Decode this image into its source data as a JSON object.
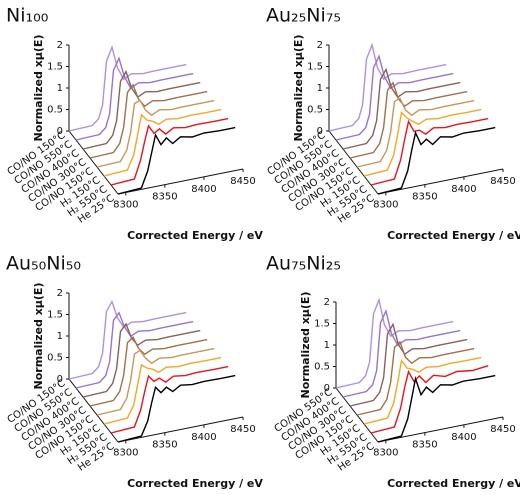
{
  "chart_data": [
    {
      "type": "line",
      "title": "Ni₁₀₀",
      "xlabel": "Corrected Energy / eV",
      "ylabel": "Normalized xμ(E)",
      "x": [
        8290,
        8320,
        8328,
        8333,
        8338,
        8345,
        8352,
        8360,
        8370,
        8385,
        8400,
        8420,
        8440
      ],
      "xlim": [
        8290,
        8450
      ],
      "xticks": [
        8300,
        8350,
        8400,
        8450
      ],
      "ylim": [
        0,
        2
      ],
      "yticks": [
        0,
        0.5,
        1,
        1.5,
        2
      ],
      "series": [
        {
          "name": "He 25°C",
          "color": "#000000",
          "values": [
            0,
            0.03,
            0.4,
            0.8,
            1.2,
            0.95,
            1.08,
            0.92,
            1.04,
            0.98,
            1.02,
            1.0,
            1.0
          ]
        },
        {
          "name": "H₂ 550°C",
          "color": "#e8141c",
          "values": [
            0,
            0.03,
            0.45,
            0.85,
            1.2,
            1.0,
            1.08,
            0.93,
            1.04,
            0.99,
            1.01,
            1.0,
            1.0
          ]
        },
        {
          "name": "H₂ 150°C",
          "color": "#f5a623",
          "values": [
            0,
            0.03,
            0.35,
            0.8,
            1.25,
            1.1,
            1.05,
            0.95,
            1.03,
            0.99,
            1.01,
            1.0,
            1.0
          ]
        },
        {
          "name": "CO/NO 150°C",
          "color": "#c8965a",
          "values": [
            0,
            0.02,
            0.25,
            0.65,
            1.3,
            1.35,
            1.1,
            0.95,
            1.04,
            0.99,
            1.0,
            1.0,
            1.0
          ]
        },
        {
          "name": "CO/NO 300°C",
          "color": "#a0704f",
          "values": [
            0,
            0.02,
            0.2,
            0.55,
            1.35,
            1.5,
            1.15,
            0.95,
            1.04,
            0.99,
            1.0,
            1.0,
            1.0
          ]
        },
        {
          "name": "CO/NO 400°C",
          "color": "#8c5f5a",
          "values": [
            0,
            0.02,
            0.18,
            0.5,
            1.4,
            1.6,
            1.2,
            0.95,
            1.04,
            0.99,
            1.0,
            1.0,
            1.0
          ]
        },
        {
          "name": "CO/NO 550°C",
          "color": "#9a72d0",
          "values": [
            0,
            0.02,
            0.15,
            0.45,
            1.45,
            1.7,
            1.25,
            0.95,
            1.04,
            0.99,
            1.0,
            1.0,
            1.0
          ]
        },
        {
          "name": "CO/NO 150°C",
          "color": "#b090e0",
          "values": [
            0,
            0.02,
            0.15,
            0.45,
            1.45,
            1.75,
            1.25,
            0.95,
            1.04,
            0.99,
            1.0,
            1.0,
            1.0
          ]
        }
      ]
    },
    {
      "type": "line",
      "title": "Au₂₅Ni₇₅",
      "xlabel": "Corrected Energy / eV",
      "ylabel": "Normalized xμ(E)",
      "x": [
        8290,
        8320,
        8328,
        8333,
        8338,
        8345,
        8352,
        8360,
        8370,
        8385,
        8400,
        8420,
        8440
      ],
      "xlim": [
        8290,
        8450
      ],
      "xticks": [
        8300,
        8350,
        8400,
        8450
      ],
      "ylim": [
        0,
        2
      ],
      "yticks": [
        0,
        0.5,
        1,
        1.5,
        2
      ],
      "series": [
        {
          "name": "He 25°C",
          "color": "#000000",
          "values": [
            0,
            0.03,
            0.4,
            0.85,
            1.25,
            0.95,
            1.05,
            0.9,
            1.04,
            0.98,
            1.02,
            1.0,
            1.0
          ]
        },
        {
          "name": "H₂ 550°C",
          "color": "#e8141c",
          "values": [
            0,
            0.03,
            0.45,
            0.9,
            1.3,
            1.05,
            1.05,
            0.93,
            1.04,
            0.99,
            1.01,
            1.0,
            1.0
          ]
        },
        {
          "name": "H₂ 150°C",
          "color": "#f5a623",
          "values": [
            0,
            0.03,
            0.35,
            0.8,
            1.3,
            1.15,
            1.05,
            0.95,
            1.03,
            0.99,
            1.01,
            1.0,
            1.0
          ]
        },
        {
          "name": "CO/NO 150°C",
          "color": "#c8965a",
          "values": [
            0,
            0.02,
            0.25,
            0.65,
            1.35,
            1.4,
            1.1,
            0.95,
            1.04,
            0.99,
            1.0,
            1.0,
            1.0
          ]
        },
        {
          "name": "CO/NO 300°C",
          "color": "#a0704f",
          "values": [
            0,
            0.02,
            0.2,
            0.55,
            1.4,
            1.55,
            1.15,
            0.95,
            1.04,
            0.99,
            1.0,
            1.0,
            1.0
          ]
        },
        {
          "name": "CO/NO 400°C",
          "color": "#8c5f5a",
          "values": [
            0,
            0.02,
            0.18,
            0.5,
            1.45,
            1.65,
            1.2,
            0.95,
            1.04,
            0.99,
            1.0,
            1.0,
            1.0
          ]
        },
        {
          "name": "CO/NO 550°C",
          "color": "#9a72d0",
          "values": [
            0,
            0.02,
            0.15,
            0.45,
            1.5,
            1.75,
            1.25,
            0.95,
            1.04,
            0.99,
            1.0,
            1.0,
            1.0
          ]
        },
        {
          "name": "CO/NO 150°C",
          "color": "#b090e0",
          "values": [
            0,
            0.02,
            0.15,
            0.45,
            1.5,
            1.8,
            1.25,
            0.95,
            1.04,
            0.99,
            1.0,
            1.0,
            1.0
          ]
        }
      ]
    },
    {
      "type": "line",
      "title": "Au₅₀Ni₅₀",
      "xlabel": "Corrected Energy / eV",
      "ylabel": "Normalized xμ(E)",
      "x": [
        8290,
        8320,
        8328,
        8333,
        8338,
        8345,
        8352,
        8360,
        8370,
        8385,
        8400,
        8420,
        8440
      ],
      "xlim": [
        8290,
        8450
      ],
      "xticks": [
        8300,
        8350,
        8400,
        8450
      ],
      "ylim": [
        0,
        2
      ],
      "yticks": [
        0,
        0.5,
        1,
        1.5,
        2
      ],
      "series": [
        {
          "name": "He 25°C",
          "color": "#000000",
          "values": [
            0,
            0.03,
            0.35,
            0.75,
            1.1,
            0.95,
            1.05,
            0.92,
            1.03,
            0.99,
            1.01,
            1.0,
            1.0
          ]
        },
        {
          "name": "H₂ 550°C",
          "color": "#e8141c",
          "values": [
            0,
            0.03,
            0.4,
            0.8,
            1.15,
            1.0,
            1.05,
            0.93,
            1.03,
            0.99,
            1.01,
            1.0,
            1.0
          ]
        },
        {
          "name": "H₂ 150°C",
          "color": "#f5a623",
          "values": [
            0,
            0.03,
            0.3,
            0.75,
            1.2,
            1.1,
            1.05,
            0.95,
            1.03,
            0.99,
            1.01,
            1.0,
            1.0
          ]
        },
        {
          "name": "CO/NO 150°C",
          "color": "#c8965a",
          "values": [
            0,
            0.02,
            0.25,
            0.65,
            1.25,
            1.3,
            1.1,
            0.95,
            1.03,
            0.99,
            1.0,
            1.0,
            1.0
          ]
        },
        {
          "name": "CO/NO 300°C",
          "color": "#a0704f",
          "values": [
            0,
            0.02,
            0.2,
            0.55,
            1.3,
            1.4,
            1.12,
            0.95,
            1.03,
            0.99,
            1.0,
            1.0,
            1.0
          ]
        },
        {
          "name": "CO/NO 400°C",
          "color": "#8c5f5a",
          "values": [
            0,
            0.02,
            0.18,
            0.5,
            1.35,
            1.5,
            1.15,
            0.95,
            1.03,
            0.99,
            1.0,
            1.0,
            1.0
          ]
        },
        {
          "name": "CO/NO 550°C",
          "color": "#9a72d0",
          "values": [
            0,
            0.02,
            0.15,
            0.45,
            1.4,
            1.55,
            1.2,
            0.95,
            1.03,
            0.99,
            1.0,
            1.0,
            1.0
          ]
        },
        {
          "name": "CO/NO 150°C",
          "color": "#b090e0",
          "values": [
            0,
            0.02,
            0.15,
            0.45,
            1.4,
            1.6,
            1.2,
            0.95,
            1.03,
            0.99,
            1.0,
            1.0,
            1.0
          ]
        }
      ]
    },
    {
      "type": "line",
      "title": "Au₇₅Ni₂₅",
      "xlabel": "Corrected Energy / eV",
      "ylabel": "Normalized xμ(E)",
      "x": [
        8290,
        8320,
        8328,
        8333,
        8338,
        8345,
        8352,
        8360,
        8370,
        8385,
        8400,
        8420,
        8440
      ],
      "xlim": [
        8290,
        8450
      ],
      "xticks": [
        8300,
        8350,
        8400,
        8450
      ],
      "ylim": [
        0,
        2
      ],
      "yticks": [
        0,
        0.5,
        1,
        1.5,
        2
      ],
      "series": [
        {
          "name": "He 25°C",
          "color": "#000000",
          "values": [
            0,
            0.03,
            0.4,
            0.85,
            1.3,
            0.9,
            1.05,
            0.9,
            1.04,
            0.98,
            1.02,
            1.0,
            1.0
          ]
        },
        {
          "name": "H₂ 550°C",
          "color": "#e8141c",
          "values": [
            0,
            0.03,
            0.45,
            0.9,
            1.25,
            1.0,
            1.1,
            0.92,
            1.05,
            0.97,
            1.03,
            0.98,
            1.02
          ]
        },
        {
          "name": "H₂ 150°C",
          "color": "#f5a623",
          "values": [
            0,
            0.03,
            0.35,
            0.8,
            1.3,
            1.1,
            1.05,
            0.95,
            1.03,
            0.99,
            1.01,
            1.0,
            1.0
          ]
        },
        {
          "name": "CO/NO 150°C",
          "color": "#a0704f",
          "values": [
            0,
            0.02,
            0.22,
            0.6,
            1.4,
            1.5,
            1.12,
            0.95,
            1.04,
            0.99,
            1.0,
            1.0,
            1.0
          ]
        },
        {
          "name": "CO/NO 300°C",
          "color": "#8c5f5a",
          "values": [
            0,
            0.02,
            0.18,
            0.5,
            1.5,
            1.7,
            1.2,
            0.95,
            1.04,
            0.99,
            1.0,
            1.0,
            1.0
          ]
        },
        {
          "name": "CO/NO 400°C",
          "color": "#9a72d0",
          "values": [
            0,
            0.02,
            0.15,
            0.45,
            1.55,
            1.8,
            1.25,
            0.95,
            1.04,
            0.99,
            1.0,
            1.0,
            1.0
          ]
        },
        {
          "name": "CO/NO 550°C",
          "color": "#b090e0",
          "values": [
            0,
            0.02,
            0.15,
            0.45,
            1.55,
            1.85,
            1.25,
            0.95,
            1.04,
            0.99,
            1.0,
            1.0,
            1.0
          ]
        }
      ]
    }
  ]
}
